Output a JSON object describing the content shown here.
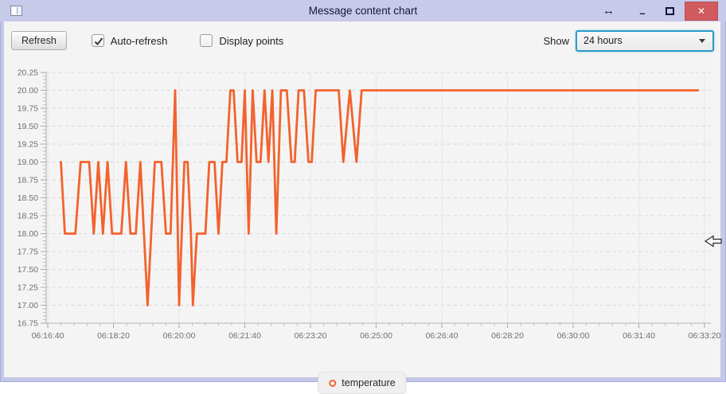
{
  "window": {
    "title": "Message content chart",
    "controls": {
      "resize_glyph": "↔",
      "minimize_glyph": "–",
      "close_glyph": "✕"
    }
  },
  "toolbar": {
    "refresh_label": "Refresh",
    "auto_refresh_label": "Auto-refresh",
    "auto_refresh_checked": true,
    "display_points_label": "Display points",
    "display_points_checked": false,
    "show_label": "Show",
    "show_value": "24 hours"
  },
  "colors": {
    "series_orange": "#f3622d",
    "titlebar": "#c7cae8",
    "close_button": "#d05a5e",
    "focus_ring": "#2a9dc9",
    "chart_background": "#f4f4f4"
  },
  "chart_data": {
    "type": "line",
    "title": "",
    "xlabel": "",
    "ylabel": "",
    "grid": true,
    "legend_position": "bottom",
    "ylim": [
      16.75,
      20.25
    ],
    "y_tick_step": 0.25,
    "y_minor_step": 0.05,
    "x_minor_step_seconds": 20,
    "xlim_seconds": [
      0,
      1010
    ],
    "x_ticks": [
      {
        "t": 0,
        "label": "06:16:40"
      },
      {
        "t": 100,
        "label": "06:18:20"
      },
      {
        "t": 200,
        "label": "06:20:00"
      },
      {
        "t": 300,
        "label": "06:21:40"
      },
      {
        "t": 400,
        "label": "06:23:20"
      },
      {
        "t": 500,
        "label": "06:25:00"
      },
      {
        "t": 600,
        "label": "06:26:40"
      },
      {
        "t": 700,
        "label": "06:28:20"
      },
      {
        "t": 800,
        "label": "06:30:00"
      },
      {
        "t": 900,
        "label": "06:31:40"
      },
      {
        "t": 1000,
        "label": "06:33:20"
      }
    ],
    "series": [
      {
        "name": "temperature",
        "color": "#f3622d",
        "points": [
          [
            20,
            19
          ],
          [
            26,
            18
          ],
          [
            42,
            18
          ],
          [
            50,
            19
          ],
          [
            63,
            19
          ],
          [
            70,
            18
          ],
          [
            77,
            19
          ],
          [
            84,
            18
          ],
          [
            91,
            19
          ],
          [
            98,
            18
          ],
          [
            112,
            18
          ],
          [
            119,
            19
          ],
          [
            126,
            18
          ],
          [
            134,
            18
          ],
          [
            141,
            19
          ],
          [
            152,
            17
          ],
          [
            163,
            19
          ],
          [
            173,
            19
          ],
          [
            180,
            18
          ],
          [
            187,
            18
          ],
          [
            194,
            20
          ],
          [
            200,
            17
          ],
          [
            208,
            19
          ],
          [
            213,
            19
          ],
          [
            218,
            18
          ],
          [
            221,
            17
          ],
          [
            227,
            18
          ],
          [
            240,
            18
          ],
          [
            246,
            19
          ],
          [
            254,
            19
          ],
          [
            260,
            18
          ],
          [
            266,
            19
          ],
          [
            272,
            19
          ],
          [
            278,
            20
          ],
          [
            283,
            20
          ],
          [
            289,
            19
          ],
          [
            295,
            19
          ],
          [
            300,
            20
          ],
          [
            306,
            18
          ],
          [
            312,
            20
          ],
          [
            318,
            19
          ],
          [
            324,
            19
          ],
          [
            330,
            20
          ],
          [
            336,
            19
          ],
          [
            342,
            20
          ],
          [
            348,
            18
          ],
          [
            355,
            20
          ],
          [
            364,
            20
          ],
          [
            371,
            19
          ],
          [
            376,
            19
          ],
          [
            382,
            20
          ],
          [
            390,
            20
          ],
          [
            397,
            19
          ],
          [
            402,
            19
          ],
          [
            408,
            20
          ],
          [
            443,
            20
          ],
          [
            450,
            19
          ],
          [
            460,
            20
          ],
          [
            470,
            19
          ],
          [
            478,
            20
          ],
          [
            990,
            20
          ]
        ]
      }
    ]
  }
}
